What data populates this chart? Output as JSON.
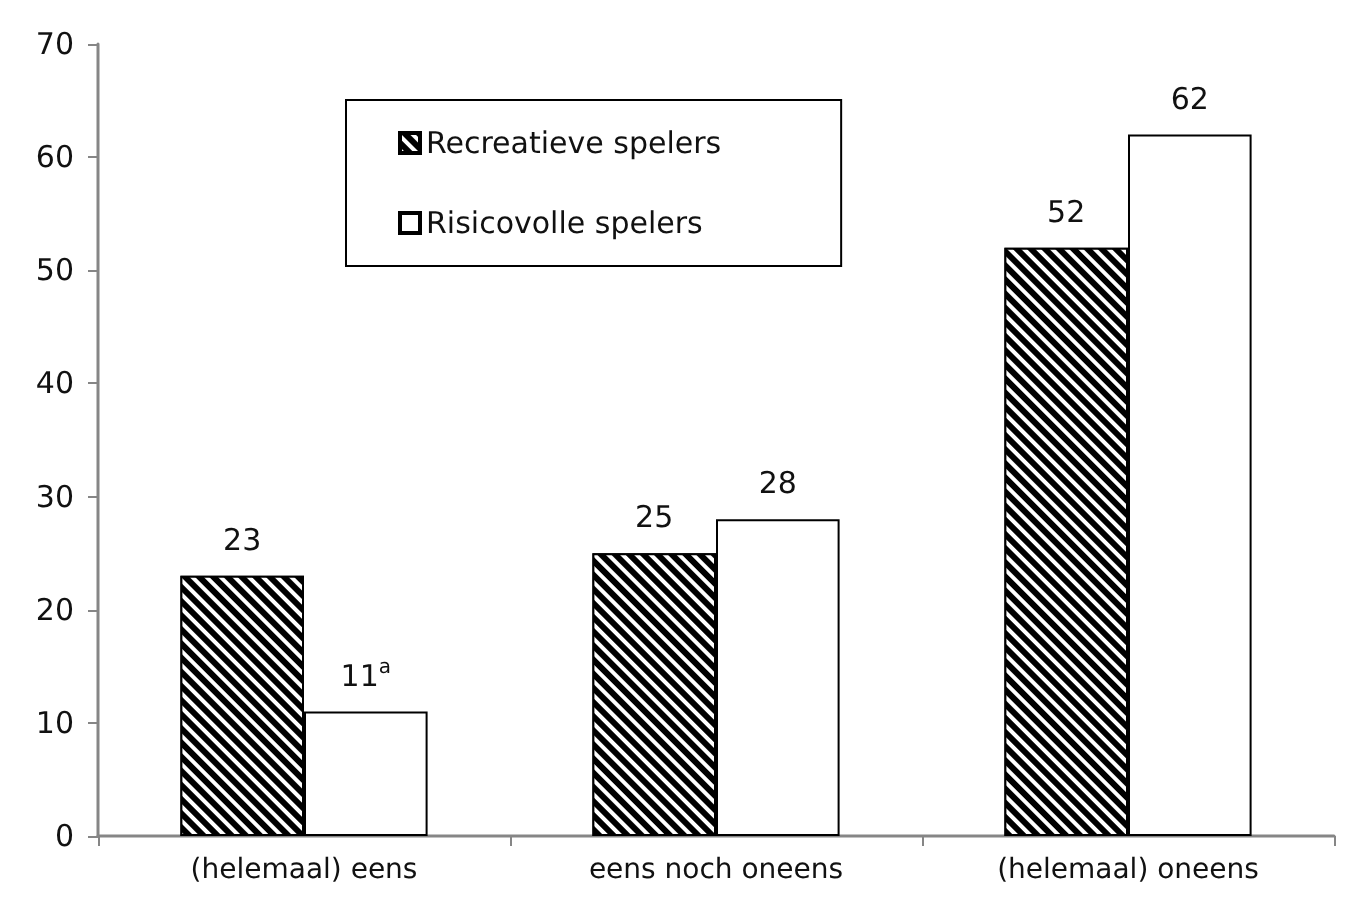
{
  "chart_data": {
    "type": "bar",
    "categories": [
      "(helemaal) eens",
      "eens noch oneens",
      "(helemaal) oneens"
    ],
    "series": [
      {
        "name": "Recreatieve spelers",
        "color": "#000000",
        "values": [
          23,
          25,
          52
        ],
        "value_labels": [
          "23",
          "25",
          "52"
        ]
      },
      {
        "name": "Risicovolle spelers",
        "color": "#ffffff",
        "values": [
          11,
          28,
          62
        ],
        "value_labels": [
          "11$^{a}$",
          "28",
          "62"
        ]
      }
    ],
    "ylim": [
      0,
      70
    ],
    "yticks": [
      0,
      10,
      20,
      30,
      40,
      50,
      60,
      70
    ],
    "grid": false,
    "legend": "top"
  }
}
